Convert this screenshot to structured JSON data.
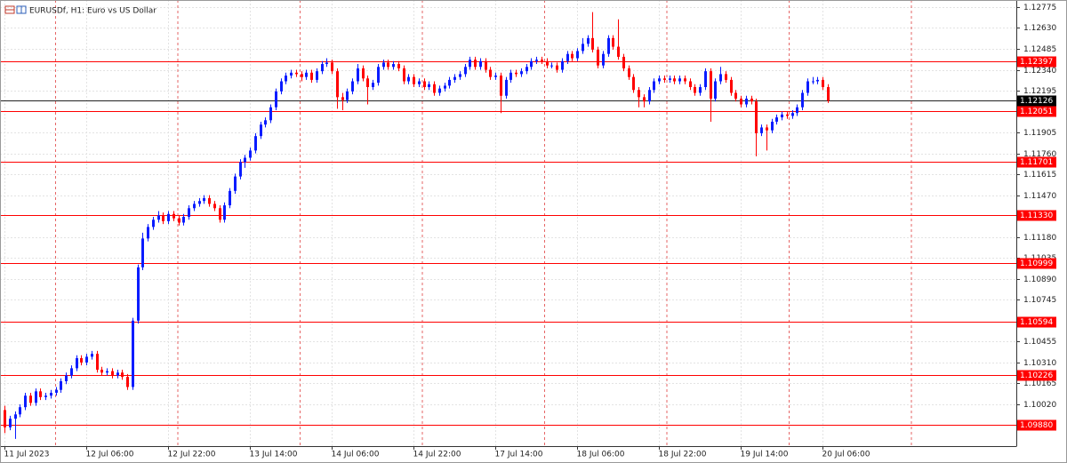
{
  "chart_data": {
    "type": "candlestick",
    "title": "EURUSDf, H1:  Euro vs US Dollar",
    "up_color": "#0a1cff",
    "down_color": "#ff0000",
    "level_color": "#ff0000",
    "grid": true,
    "ylim": [
      1.0973,
      1.12824
    ],
    "yticks": [
      1.12775,
      {
        "value": 1.1263,
        "label": "1.12630"
      },
      1.12485,
      {
        "value": 1.1234,
        "label": "1.12340"
      },
      1.12195,
      1.11905,
      {
        "value": 1.1176,
        "label": "1.11760"
      },
      1.11615,
      {
        "value": 1.1147,
        "label": "1.11470"
      },
      {
        "value": 1.1118,
        "label": "1.11180"
      },
      1.11035,
      {
        "value": 1.1089,
        "label": "1.10890"
      },
      1.10745,
      1.10455,
      {
        "value": 1.1031,
        "label": "1.10310"
      },
      1.10165,
      {
        "value": 1.1002,
        "label": "1.10020"
      }
    ],
    "levels": [
      1.12397,
      1.12051,
      1.11701,
      {
        "value": 1.1133,
        "label": "1.11330"
      },
      1.10999,
      1.10594,
      1.10226,
      {
        "value": 1.0988,
        "label": "1.09880"
      }
    ],
    "current_price": 1.12126,
    "x": [
      "11 Jul 2023",
      null,
      null,
      null,
      null,
      null,
      null,
      null,
      null,
      null,
      null,
      null,
      null,
      null,
      null,
      null,
      "12 Jul 06:00",
      null,
      null,
      null,
      null,
      null,
      null,
      null,
      null,
      null,
      null,
      null,
      null,
      null,
      null,
      null,
      "12 Jul 22:00",
      null,
      null,
      null,
      null,
      null,
      null,
      null,
      null,
      null,
      null,
      null,
      null,
      null,
      null,
      null,
      "13 Jul 14:00",
      null,
      null,
      null,
      null,
      null,
      null,
      null,
      null,
      null,
      null,
      null,
      null,
      null,
      null,
      null,
      "14 Jul 06:00",
      null,
      null,
      null,
      null,
      null,
      null,
      null,
      null,
      null,
      null,
      null,
      null,
      null,
      null,
      null,
      "14 Jul 22:00",
      null,
      null,
      null,
      null,
      null,
      null,
      null,
      null,
      null,
      null,
      null,
      null,
      null,
      null,
      null,
      "17 Jul 14:00",
      null,
      null,
      null,
      null,
      null,
      null,
      null,
      null,
      null,
      null,
      null,
      null,
      null,
      null,
      null,
      "18 Jul 06:00",
      null,
      null,
      null,
      null,
      null,
      null,
      null,
      null,
      null,
      null,
      null,
      null,
      null,
      null,
      null,
      "18 Jul 22:00",
      null,
      null,
      null,
      null,
      null,
      null,
      null,
      null,
      null,
      null,
      null,
      null,
      null,
      null,
      null,
      "19 Jul 14:00",
      null,
      null,
      null,
      null,
      null,
      null,
      null,
      null,
      null,
      null,
      null,
      null,
      null,
      null,
      null,
      "20 Jul 06:00",
      null
    ],
    "open": [
      1.0998,
      1.0986,
      1.0992,
      1.0995,
      1.1,
      1.1008,
      1.1003,
      1.1011,
      1.1007,
      1.1008,
      1.101,
      1.1012,
      1.1018,
      1.1022,
      1.1027,
      1.1034,
      1.1031,
      1.1035,
      1.1037,
      1.1026,
      1.1024,
      1.1025,
      1.1022,
      1.1024,
      1.1021,
      1.1014,
      1.106,
      1.1097,
      1.1117,
      1.1125,
      1.113,
      1.1133,
      1.1129,
      1.1134,
      1.1131,
      1.1128,
      1.1132,
      1.1138,
      1.1141,
      1.1143,
      1.1145,
      1.1141,
      1.1138,
      1.113,
      1.114,
      1.115,
      1.116,
      1.117,
      1.1173,
      1.1178,
      1.1188,
      1.1196,
      1.1199,
      1.1208,
      1.1219,
      1.1226,
      1.123,
      1.1232,
      1.1231,
      1.1229,
      1.1232,
      1.1227,
      1.1233,
      1.1238,
      1.1239,
      1.1233,
      1.1215,
      1.1213,
      1.1219,
      1.1226,
      1.1235,
      1.1228,
      1.1222,
      1.1225,
      1.1236,
      1.1239,
      1.1236,
      1.1238,
      1.1235,
      1.1226,
      1.1229,
      1.1224,
      1.1226,
      1.1222,
      1.1224,
      1.1218,
      1.1221,
      1.1223,
      1.1227,
      1.1229,
      1.1231,
      1.1236,
      1.1241,
      1.1236,
      1.124,
      1.1234,
      1.1229,
      1.123,
      1.1216,
      1.1227,
      1.1232,
      1.1231,
      1.1233,
      1.1236,
      1.124,
      1.1241,
      1.124,
      1.1237,
      1.1237,
      1.1234,
      1.124,
      1.1245,
      1.1242,
      1.1247,
      1.1252,
      1.1256,
      1.1248,
      1.1237,
      1.1245,
      1.1256,
      1.125,
      1.1243,
      1.1235,
      1.1229,
      1.122,
      1.1215,
      1.1212,
      1.122,
      1.1226,
      1.1228,
      1.1227,
      1.1228,
      1.1226,
      1.1228,
      1.1226,
      1.1222,
      1.1218,
      1.1222,
      1.1233,
      1.1214,
      1.1226,
      1.1231,
      1.1227,
      1.1218,
      1.1214,
      1.121,
      1.1214,
      1.1212,
      1.119,
      1.1194,
      1.1192,
      1.1198,
      1.1201,
      1.1203,
      1.1202,
      1.1204,
      1.1208,
      1.1218,
      1.1226,
      1.1226,
      1.1227,
      1.1222
    ],
    "high": [
      1.1001,
      1.0994,
      1.0997,
      1.1002,
      1.101,
      1.101,
      1.1013,
      1.1013,
      1.101,
      1.1012,
      1.1014,
      1.102,
      1.1024,
      1.1029,
      1.1036,
      1.1036,
      1.1037,
      1.1039,
      1.1039,
      1.1028,
      1.1027,
      1.1027,
      1.1026,
      1.1026,
      1.1023,
      1.1062,
      1.1099,
      1.1121,
      1.1127,
      1.1132,
      1.1136,
      1.1135,
      1.1136,
      1.1136,
      1.1133,
      1.1134,
      1.114,
      1.1143,
      1.1145,
      1.1147,
      1.1147,
      1.1143,
      1.114,
      1.1142,
      1.1152,
      1.1162,
      1.1172,
      1.1175,
      1.118,
      1.119,
      1.1198,
      1.1201,
      1.121,
      1.1221,
      1.1228,
      1.1232,
      1.1234,
      1.1234,
      1.1233,
      1.1234,
      1.1234,
      1.1235,
      1.124,
      1.1242,
      1.1241,
      1.1235,
      1.1218,
      1.1221,
      1.1228,
      1.1238,
      1.1237,
      1.123,
      1.1227,
      1.1238,
      1.1241,
      1.1241,
      1.124,
      1.124,
      1.1237,
      1.1231,
      1.1231,
      1.1228,
      1.1228,
      1.1226,
      1.1226,
      1.1223,
      1.1225,
      1.1229,
      1.1231,
      1.1233,
      1.1238,
      1.1243,
      1.1243,
      1.1242,
      1.1242,
      1.1236,
      1.1232,
      1.1232,
      1.1229,
      1.1234,
      1.1234,
      1.1235,
      1.1238,
      1.1242,
      1.1243,
      1.1243,
      1.1242,
      1.1239,
      1.1239,
      1.1242,
      1.1247,
      1.1247,
      1.1249,
      1.1256,
      1.1258,
      1.1274,
      1.125,
      1.1247,
      1.1258,
      1.1258,
      1.1269,
      1.1245,
      1.1237,
      1.1231,
      1.1222,
      1.1217,
      1.1222,
      1.1228,
      1.123,
      1.123,
      1.123,
      1.123,
      1.123,
      1.123,
      1.1228,
      1.1224,
      1.1224,
      1.1235,
      1.1235,
      1.1228,
      1.1236,
      1.1233,
      1.1229,
      1.122,
      1.1216,
      1.1216,
      1.1216,
      1.1214,
      1.1196,
      1.1196,
      1.12,
      1.1203,
      1.1205,
      1.1205,
      1.1206,
      1.121,
      1.122,
      1.1228,
      1.1229,
      1.1229,
      1.1229,
      1.1224
    ],
    "low": [
      1.0982,
      1.0984,
      1.0978,
      1.0993,
      1.0998,
      1.1001,
      1.1001,
      1.1005,
      1.1005,
      1.1006,
      1.1008,
      1.101,
      1.1016,
      1.102,
      1.1025,
      1.1029,
      1.1029,
      1.1033,
      1.1024,
      1.1022,
      1.1022,
      1.102,
      1.102,
      1.1019,
      1.1012,
      1.1012,
      1.1058,
      1.1095,
      1.1115,
      1.1123,
      1.1128,
      1.1127,
      1.1127,
      1.1129,
      1.1126,
      1.1126,
      1.113,
      1.1136,
      1.1139,
      1.1141,
      1.1139,
      1.1136,
      1.1128,
      1.1128,
      1.1138,
      1.1148,
      1.1158,
      1.1166,
      1.1171,
      1.1176,
      1.1186,
      1.1194,
      1.1197,
      1.1206,
      1.1217,
      1.1224,
      1.1228,
      1.1229,
      1.1226,
      1.1227,
      1.1225,
      1.1225,
      1.1231,
      1.1236,
      1.1231,
      1.1207,
      1.1206,
      1.1211,
      1.1217,
      1.1224,
      1.1226,
      1.121,
      1.122,
      1.1223,
      1.1234,
      1.1234,
      1.1234,
      1.1233,
      1.1224,
      1.1224,
      1.1222,
      1.1222,
      1.122,
      1.122,
      1.1216,
      1.1216,
      1.1219,
      1.1221,
      1.1225,
      1.1227,
      1.1229,
      1.1234,
      1.1234,
      1.1234,
      1.1232,
      1.1227,
      1.1227,
      1.1204,
      1.1214,
      1.1225,
      1.1229,
      1.1229,
      1.1231,
      1.1234,
      1.1238,
      1.1238,
      1.1235,
      1.1235,
      1.1232,
      1.1232,
      1.1238,
      1.124,
      1.124,
      1.1245,
      1.125,
      1.1246,
      1.1235,
      1.1235,
      1.1243,
      1.1248,
      1.1241,
      1.1233,
      1.1227,
      1.1218,
      1.1208,
      1.1208,
      1.121,
      1.1218,
      1.1224,
      1.1225,
      1.1225,
      1.1224,
      1.1224,
      1.1224,
      1.122,
      1.1216,
      1.1216,
      1.122,
      1.1198,
      1.1212,
      1.1224,
      1.1225,
      1.1216,
      1.1212,
      1.1208,
      1.1208,
      1.121,
      1.1174,
      1.1188,
      1.1178,
      1.119,
      1.1196,
      1.1199,
      1.12,
      1.12,
      1.1202,
      1.1206,
      1.1216,
      1.1224,
      1.1224,
      1.122,
      1.1211
    ],
    "close": [
      1.0986,
      1.0992,
      1.0995,
      1.1,
      1.1008,
      1.1003,
      1.1011,
      1.1007,
      1.1008,
      1.101,
      1.1012,
      1.1018,
      1.1022,
      1.1027,
      1.1034,
      1.1031,
      1.1035,
      1.1037,
      1.1026,
      1.1024,
      1.1025,
      1.1022,
      1.1024,
      1.1021,
      1.1014,
      1.106,
      1.1097,
      1.1117,
      1.1125,
      1.113,
      1.1133,
      1.1129,
      1.1134,
      1.1131,
      1.1128,
      1.1132,
      1.1138,
      1.1141,
      1.1143,
      1.1145,
      1.1141,
      1.1138,
      1.113,
      1.114,
      1.115,
      1.116,
      1.117,
      1.1173,
      1.1178,
      1.1188,
      1.1196,
      1.1199,
      1.1208,
      1.1219,
      1.1226,
      1.123,
      1.1232,
      1.1231,
      1.1229,
      1.1232,
      1.1227,
      1.1233,
      1.1238,
      1.1239,
      1.1233,
      1.1215,
      1.1213,
      1.1219,
      1.1226,
      1.1235,
      1.1228,
      1.1222,
      1.1225,
      1.1236,
      1.1239,
      1.1236,
      1.1238,
      1.1235,
      1.1226,
      1.1229,
      1.1224,
      1.1226,
      1.1222,
      1.1224,
      1.1218,
      1.1221,
      1.1223,
      1.1227,
      1.1229,
      1.1231,
      1.1236,
      1.1241,
      1.1236,
      1.124,
      1.1234,
      1.1229,
      1.123,
      1.1216,
      1.1227,
      1.1232,
      1.1231,
      1.1233,
      1.1236,
      1.124,
      1.1241,
      1.124,
      1.1237,
      1.1237,
      1.1234,
      1.124,
      1.1245,
      1.1242,
      1.1247,
      1.1252,
      1.1256,
      1.1248,
      1.1237,
      1.1245,
      1.1256,
      1.125,
      1.1243,
      1.1235,
      1.1229,
      1.122,
      1.1215,
      1.1212,
      1.122,
      1.1226,
      1.1228,
      1.1227,
      1.1228,
      1.1226,
      1.1228,
      1.1226,
      1.1222,
      1.1218,
      1.1222,
      1.1233,
      1.1214,
      1.1226,
      1.1231,
      1.1227,
      1.1218,
      1.1214,
      1.121,
      1.1214,
      1.1212,
      1.119,
      1.1194,
      1.1192,
      1.1198,
      1.1201,
      1.1203,
      1.1202,
      1.1204,
      1.1208,
      1.1218,
      1.1226,
      1.1226,
      1.1227,
      1.1222,
      1.12126
    ]
  }
}
